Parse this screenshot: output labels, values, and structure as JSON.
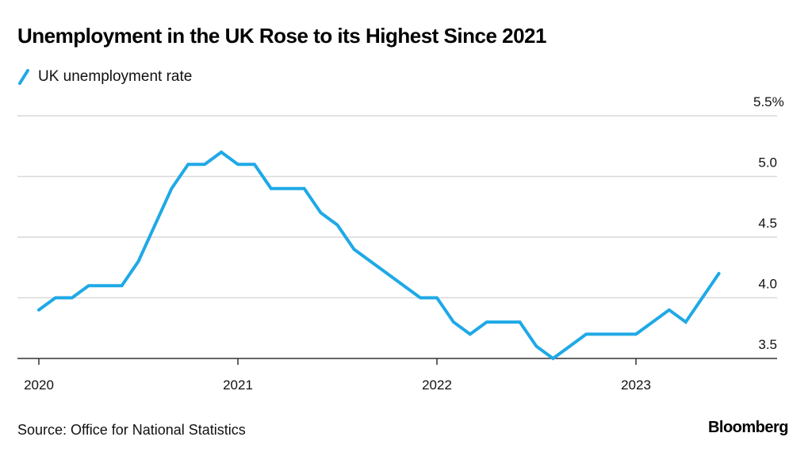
{
  "chart_data": {
    "type": "line",
    "title": "Unemployment in the UK Rose to its Highest Since 2021",
    "xlabel": "",
    "ylabel": "",
    "ylim": [
      3.5,
      5.5
    ],
    "y_ticks": [
      "5.5%",
      "5.0",
      "4.5",
      "4.0",
      "3.5"
    ],
    "y_tick_values": [
      5.5,
      5.0,
      4.5,
      4.0,
      3.5
    ],
    "x_ticks": [
      "2020",
      "2021",
      "2022",
      "2023"
    ],
    "x_tick_values": [
      2020,
      2021,
      2022,
      2023
    ],
    "x_range": [
      2019.9,
      2023.7
    ],
    "grid": true,
    "legend_position": "top-left",
    "series": [
      {
        "name": "UK unemployment rate",
        "color": "#1fa9e6",
        "x_start": "2020-01",
        "frequency": "monthly",
        "values": [
          3.9,
          4.0,
          4.0,
          4.1,
          4.1,
          4.1,
          4.3,
          4.6,
          4.9,
          5.1,
          5.1,
          5.2,
          5.1,
          5.1,
          4.9,
          4.9,
          4.9,
          4.7,
          4.6,
          4.4,
          4.3,
          4.2,
          4.1,
          4.0,
          4.0,
          3.8,
          3.7,
          3.8,
          3.8,
          3.8,
          3.6,
          3.5,
          3.6,
          3.7,
          3.7,
          3.7,
          3.7,
          3.8,
          3.9,
          3.8,
          4.0,
          4.2
        ]
      }
    ]
  },
  "header": {
    "title": "Unemployment in the UK Rose to its Highest Since 2021"
  },
  "legend": {
    "label": "UK unemployment rate",
    "icon": "slash-line-icon"
  },
  "footer": {
    "source": "Source: Office for National Statistics",
    "brand": "Bloomberg"
  }
}
